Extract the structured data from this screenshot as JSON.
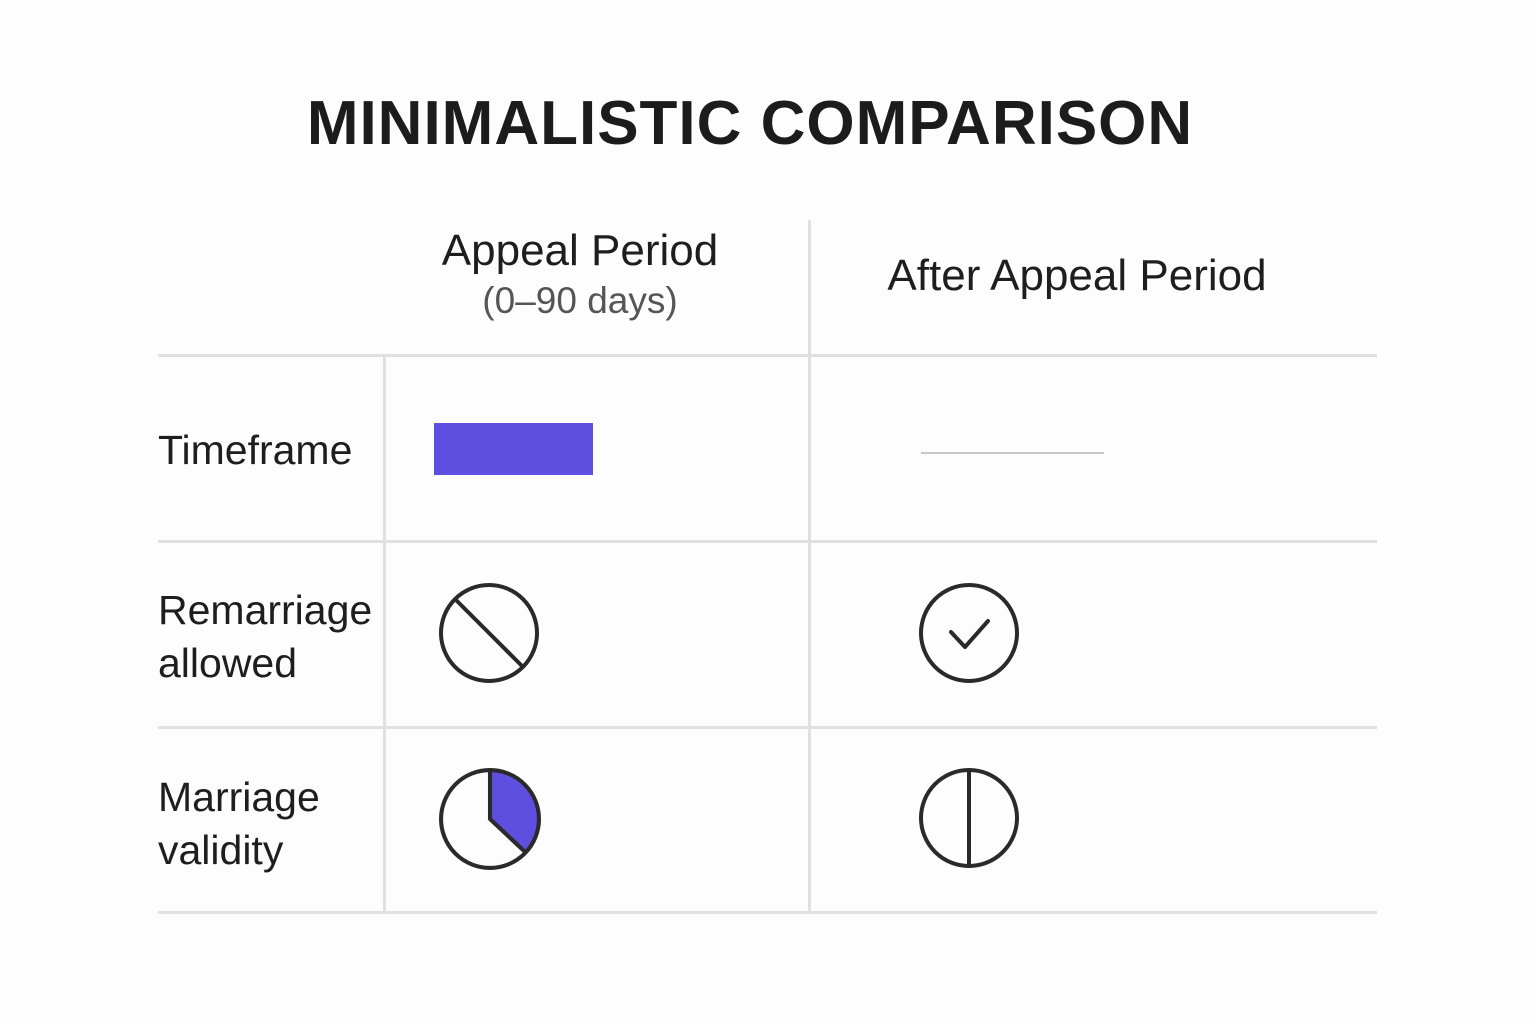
{
  "title": "MINIMALISTIC COMPARISON",
  "columns": [
    {
      "label": "Appeal Period",
      "sublabel": "(0–90 days)"
    },
    {
      "label": "After Appeal Period"
    }
  ],
  "rows": [
    {
      "label": "Timeframe",
      "cells": [
        {
          "icon": "filled-bar",
          "color": "#5f4fe0"
        },
        {
          "icon": "thin-gray-line",
          "color": "#c8c8c8"
        }
      ]
    },
    {
      "label": "Remarriage allowed",
      "cells": [
        {
          "icon": "prohibited-circle-icon"
        },
        {
          "icon": "check-circle-icon"
        }
      ]
    },
    {
      "label": "Marriage validity",
      "cells": [
        {
          "icon": "partial-pie-icon",
          "fill_fraction": 0.37,
          "color": "#5f4fe0"
        },
        {
          "icon": "split-circle-icon"
        }
      ]
    }
  ],
  "colors": {
    "accent": "#5f4fe0",
    "stroke": "#2a2a2a",
    "grid": "#e0e0e0"
  }
}
